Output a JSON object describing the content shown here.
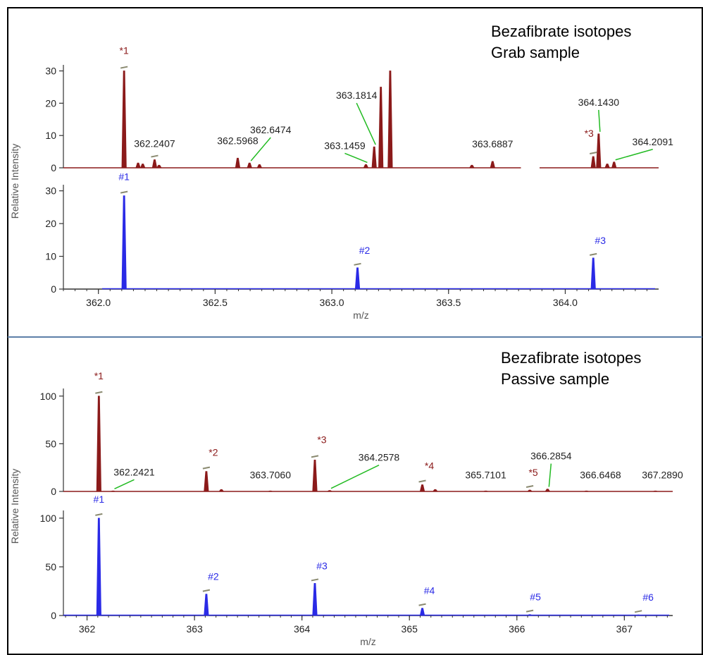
{
  "colors": {
    "red": "#8b1a1a",
    "blue": "#2a2ae6",
    "leader": "#22bb22",
    "tick_marker": "#8a8a70",
    "divider": "#5d7fa8",
    "border": "#000000"
  },
  "chart_data": [
    {
      "type": "line",
      "title": [
        "Bezafibrate isotopes",
        "Grab sample"
      ],
      "xlabel": "m/z",
      "ylabel": "Relative Intensity",
      "xlim": [
        361.85,
        364.4
      ],
      "x_ticks": [
        "362.0",
        "362.5",
        "363.0",
        "363.5",
        "364.0"
      ],
      "x_tick_values": [
        362.0,
        362.5,
        363.0,
        363.5,
        364.0
      ],
      "grid": false,
      "subplots": [
        {
          "name": "red",
          "ylim": [
            0,
            31
          ],
          "y_ticks": [
            0,
            10,
            20,
            30
          ],
          "gap": [
            363.81,
            363.89
          ],
          "peaks": [
            {
              "x": 362.11,
              "y": 30
            },
            {
              "x": 362.17,
              "y": 1.5
            },
            {
              "x": 362.19,
              "y": 1.2
            },
            {
              "x": 362.2407,
              "y": 2.5
            },
            {
              "x": 362.26,
              "y": 0.8
            },
            {
              "x": 362.5968,
              "y": 3
            },
            {
              "x": 362.6474,
              "y": 1.5
            },
            {
              "x": 362.69,
              "y": 1
            },
            {
              "x": 363.1459,
              "y": 1
            },
            {
              "x": 363.1814,
              "y": 6.5
            },
            {
              "x": 363.21,
              "y": 25
            },
            {
              "x": 363.25,
              "y": 30
            },
            {
              "x": 363.6,
              "y": 0.8
            },
            {
              "x": 363.6887,
              "y": 2
            },
            {
              "x": 364.12,
              "y": 3.5
            },
            {
              "x": 364.143,
              "y": 10.5
            },
            {
              "x": 364.18,
              "y": 1.2
            },
            {
              "x": 364.2091,
              "y": 1.8
            }
          ],
          "labels": [
            {
              "text": "*1",
              "x": 362.11,
              "y": 30,
              "color": "red",
              "marker": true
            },
            {
              "text": "362.2407",
              "x": 362.2407,
              "y": 2.5,
              "color": "black",
              "marker": true
            },
            {
              "text": "362.5968",
              "x": 362.5968,
              "y": 3,
              "color": "black",
              "marker": false
            },
            {
              "text": "362.6474",
              "x": 362.6474,
              "y": 1.5,
              "color": "black",
              "marker": false,
              "leader": true
            },
            {
              "text": "363.1459",
              "x": 363.1459,
              "y": 1,
              "color": "black",
              "marker": false,
              "leader": true
            },
            {
              "text": "363.1814",
              "x": 363.1814,
              "y": 6.5,
              "color": "black",
              "marker": false,
              "leader": true
            },
            {
              "text": "363.6887",
              "x": 363.6887,
              "y": 2,
              "color": "black",
              "marker": false
            },
            {
              "text": "*3",
              "x": 364.12,
              "y": 3.5,
              "color": "red",
              "marker": true
            },
            {
              "text": "364.1430",
              "x": 364.143,
              "y": 10.5,
              "color": "black",
              "marker": false,
              "leader": true
            },
            {
              "text": "364.2091",
              "x": 364.2091,
              "y": 1.8,
              "color": "black",
              "marker": false,
              "leader": true
            }
          ]
        },
        {
          "name": "blue",
          "ylim": [
            0,
            31
          ],
          "y_ticks": [
            0,
            10,
            20,
            30
          ],
          "peaks": [
            {
              "x": 362.11,
              "y": 28.5
            },
            {
              "x": 363.11,
              "y": 6.5
            },
            {
              "x": 364.12,
              "y": 9.5
            }
          ],
          "labels": [
            {
              "text": "#1",
              "x": 362.11,
              "y": 28.5,
              "color": "blue",
              "marker": true
            },
            {
              "text": "#2",
              "x": 363.11,
              "y": 6.5,
              "color": "blue",
              "marker": true
            },
            {
              "text": "#3",
              "x": 364.12,
              "y": 9.5,
              "color": "blue",
              "marker": true
            }
          ]
        }
      ]
    },
    {
      "type": "line",
      "title": [
        "Bezafibrate isotopes",
        "Passive sample"
      ],
      "xlabel": "m/z",
      "ylabel": "Relative Intensity",
      "xlim": [
        361.78,
        367.45
      ],
      "x_ticks": [
        "362",
        "363",
        "364",
        "365",
        "366",
        "367"
      ],
      "x_tick_values": [
        362,
        363,
        364,
        365,
        366,
        367
      ],
      "grid": false,
      "subplots": [
        {
          "name": "red",
          "ylim": [
            0,
            105
          ],
          "y_ticks": [
            0,
            50,
            100
          ],
          "peaks": [
            {
              "x": 362.11,
              "y": 100
            },
            {
              "x": 362.2421,
              "y": 0.5
            },
            {
              "x": 363.11,
              "y": 21
            },
            {
              "x": 363.25,
              "y": 2
            },
            {
              "x": 363.706,
              "y": 0.5
            },
            {
              "x": 364.12,
              "y": 33
            },
            {
              "x": 364.2578,
              "y": 1
            },
            {
              "x": 365.12,
              "y": 7
            },
            {
              "x": 365.24,
              "y": 2
            },
            {
              "x": 365.7101,
              "y": 0.5
            },
            {
              "x": 366.12,
              "y": 1.5
            },
            {
              "x": 366.2854,
              "y": 2.5
            },
            {
              "x": 366.6468,
              "y": 0.5
            },
            {
              "x": 367.289,
              "y": 0.5
            }
          ],
          "labels": [
            {
              "text": "*1",
              "x": 362.11,
              "y": 100,
              "color": "red",
              "marker": true
            },
            {
              "text": "362.2421",
              "x": 362.2421,
              "y": 0.5,
              "color": "black",
              "marker": false,
              "leader": true
            },
            {
              "text": "*2",
              "x": 363.11,
              "y": 21,
              "color": "red",
              "marker": true
            },
            {
              "text": "363.7060",
              "x": 363.706,
              "y": 0.5,
              "color": "black",
              "marker": false
            },
            {
              "text": "*3",
              "x": 364.12,
              "y": 33,
              "color": "red",
              "marker": true
            },
            {
              "text": "364.2578",
              "x": 364.2578,
              "y": 1,
              "color": "black",
              "marker": false,
              "leader": true
            },
            {
              "text": "*4",
              "x": 365.12,
              "y": 7,
              "color": "red",
              "marker": true
            },
            {
              "text": "365.7101",
              "x": 365.7101,
              "y": 0.5,
              "color": "black",
              "marker": false
            },
            {
              "text": "*5",
              "x": 366.12,
              "y": 1.5,
              "color": "red",
              "marker": true
            },
            {
              "text": "366.2854",
              "x": 366.2854,
              "y": 2.5,
              "color": "black",
              "marker": false,
              "leader": true
            },
            {
              "text": "366.6468",
              "x": 366.6468,
              "y": 0.5,
              "color": "black",
              "marker": false
            },
            {
              "text": "367.2890",
              "x": 367.289,
              "y": 0.5,
              "color": "black",
              "marker": false
            }
          ]
        },
        {
          "name": "blue",
          "ylim": [
            0,
            105
          ],
          "y_ticks": [
            0,
            50,
            100
          ],
          "peaks": [
            {
              "x": 362.11,
              "y": 100
            },
            {
              "x": 363.11,
              "y": 22
            },
            {
              "x": 364.12,
              "y": 33
            },
            {
              "x": 365.12,
              "y": 7.5
            },
            {
              "x": 366.12,
              "y": 1
            },
            {
              "x": 367.13,
              "y": 0.6
            }
          ],
          "labels": [
            {
              "text": "#1",
              "x": 362.11,
              "y": 100,
              "color": "blue",
              "marker": true
            },
            {
              "text": "#2",
              "x": 363.11,
              "y": 22,
              "color": "blue",
              "marker": true
            },
            {
              "text": "#3",
              "x": 364.12,
              "y": 33,
              "color": "blue",
              "marker": true
            },
            {
              "text": "#4",
              "x": 365.12,
              "y": 7.5,
              "color": "blue",
              "marker": true
            },
            {
              "text": "#5",
              "x": 366.12,
              "y": 1,
              "color": "blue",
              "marker": true
            },
            {
              "text": "#6",
              "x": 367.13,
              "y": 0.6,
              "color": "blue",
              "marker": true
            }
          ]
        }
      ]
    }
  ]
}
